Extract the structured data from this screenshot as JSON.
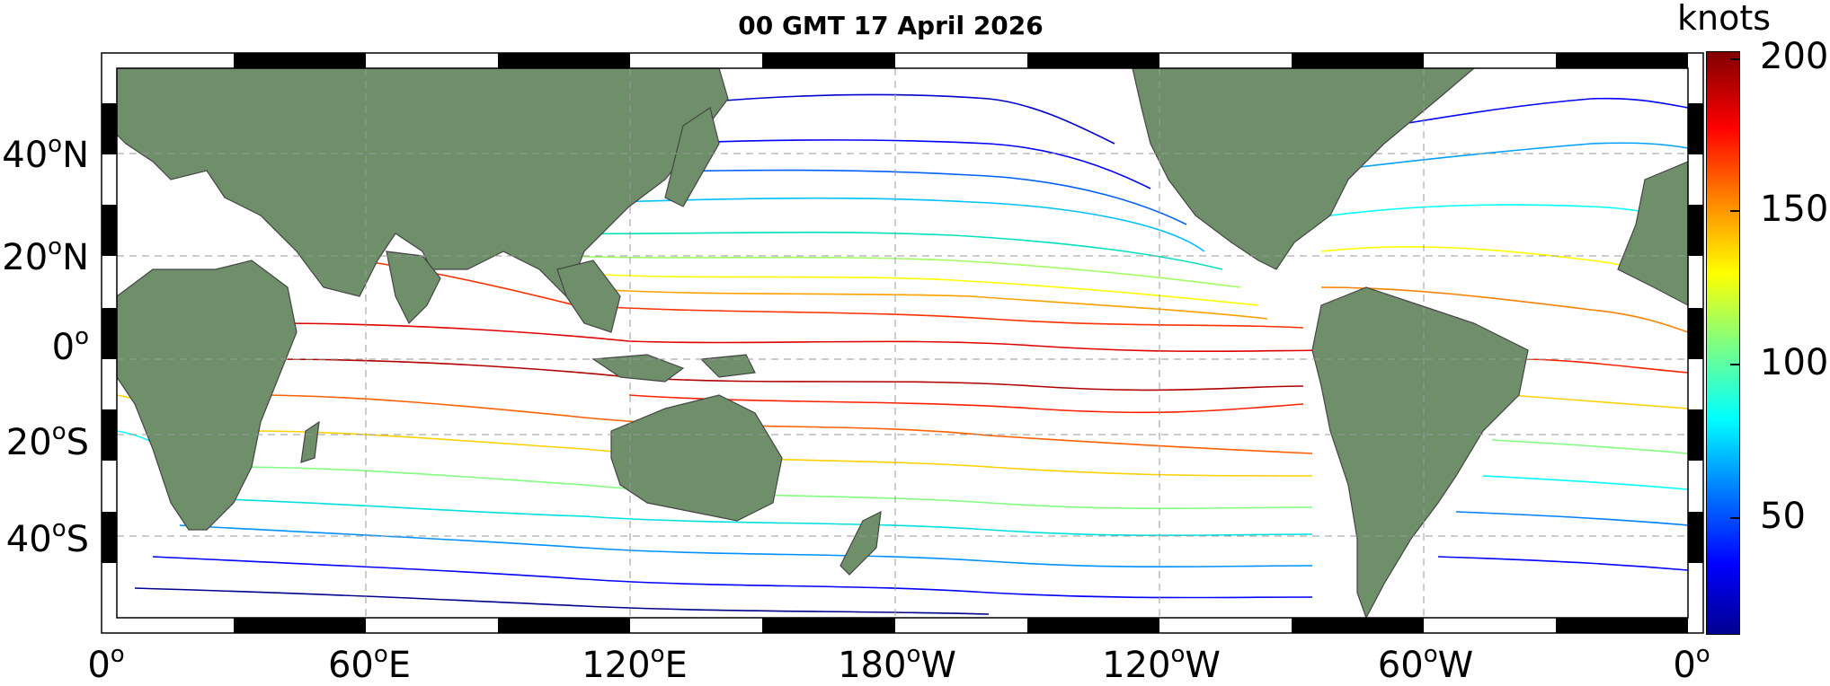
{
  "title": "00 GMT 17 April 2026",
  "colorbar": {
    "label": "knots",
    "ticks": [
      {
        "label": "200",
        "value": 200
      },
      {
        "label": "150",
        "value": 150
      },
      {
        "label": "100",
        "value": 100
      },
      {
        "label": "50",
        "value": 50
      }
    ],
    "min": 10,
    "max": 200,
    "colormap": [
      "#00008f",
      "#0000ff",
      "#0080ff",
      "#00ffff",
      "#80ff80",
      "#ffff00",
      "#ff8000",
      "#ff0000",
      "#800000"
    ]
  },
  "lat_ticks": [
    {
      "deg": "40",
      "hemi": "N",
      "value": 40
    },
    {
      "deg": "20",
      "hemi": "N",
      "value": 20
    },
    {
      "deg": "0",
      "hemi": "",
      "value": 0
    },
    {
      "deg": "20",
      "hemi": "S",
      "value": -20
    },
    {
      "deg": "40",
      "hemi": "S",
      "value": -40
    }
  ],
  "lon_ticks": [
    {
      "deg": "0",
      "hemi": "",
      "value": 0
    },
    {
      "deg": "60",
      "hemi": "E",
      "value": 60
    },
    {
      "deg": "120",
      "hemi": "E",
      "value": 120
    },
    {
      "deg": "180",
      "hemi": "W",
      "value": 180
    },
    {
      "deg": "120",
      "hemi": "W",
      "value": 240
    },
    {
      "deg": "60",
      "hemi": "W",
      "value": 300
    },
    {
      "deg": "0",
      "hemi": "",
      "value": 360
    }
  ],
  "map": {
    "lon_range": [
      0,
      360
    ],
    "lat_range": [
      -60,
      60
    ],
    "land_color": "#6f8f6a",
    "ocean_color": "#ffffff",
    "grid": true
  }
}
